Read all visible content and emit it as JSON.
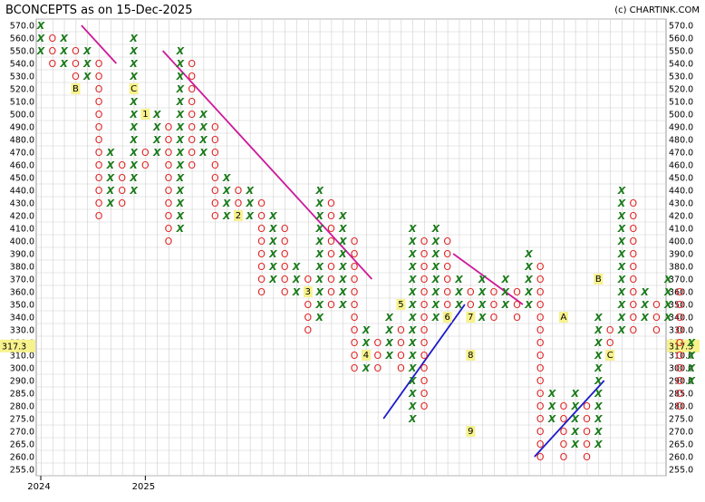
{
  "header": {
    "title": "BCONCEPTS as on 15-Dec-2025",
    "credit": "(c) CHARTINK.COM"
  },
  "chart_data": {
    "type": "point-and-figure",
    "box_levels": [
      570,
      560,
      550,
      540,
      530,
      520,
      510,
      500,
      490,
      480,
      470,
      460,
      450,
      440,
      430,
      420,
      410,
      400,
      390,
      380,
      370,
      360,
      350,
      340,
      330,
      320,
      310,
      300,
      290,
      285,
      280,
      275,
      270,
      265,
      260,
      255
    ],
    "tick_labels": [
      "570.0",
      "560.0",
      "550.0",
      "540.0",
      "530.0",
      "520.0",
      "510.0",
      "500.0",
      "490.0",
      "480.0",
      "470.0",
      "460.0",
      "450.0",
      "440.0",
      "430.0",
      "420.0",
      "410.0",
      "400.0",
      "390.0",
      "380.0",
      "370.0",
      "360.0",
      "350.0",
      "340.0",
      "330.0",
      "320.0",
      "310.0",
      "300.0",
      "290.0",
      "285.0",
      "280.0",
      "275.0",
      "270.0",
      "265.0",
      "260.0",
      "255.0"
    ],
    "last_price": "317.3",
    "x_labels": [
      {
        "label": "2024",
        "col": 0
      },
      {
        "label": "2025",
        "col": 9
      }
    ],
    "columns": [
      {
        "t": "X",
        "top": 570,
        "bot": 550
      },
      {
        "t": "O",
        "top": 560,
        "bot": 540
      },
      {
        "t": "X",
        "top": 560,
        "bot": 540
      },
      {
        "t": "O",
        "top": 550,
        "bot": 520
      },
      {
        "t": "X",
        "top": 550,
        "bot": 530
      },
      {
        "t": "O",
        "top": 540,
        "bot": 420
      },
      {
        "t": "X",
        "top": 470,
        "bot": 430
      },
      {
        "t": "O",
        "top": 460,
        "bot": 430
      },
      {
        "t": "X",
        "top": 560,
        "bot": 440
      },
      {
        "t": "O",
        "top": 470,
        "bot": 460
      },
      {
        "t": "X",
        "top": 500,
        "bot": 470
      },
      {
        "t": "O",
        "top": 490,
        "bot": 400
      },
      {
        "t": "X",
        "top": 550,
        "bot": 410
      },
      {
        "t": "O",
        "top": 540,
        "bot": 460
      },
      {
        "t": "X",
        "top": 500,
        "bot": 470
      },
      {
        "t": "O",
        "top": 490,
        "bot": 420
      },
      {
        "t": "X",
        "top": 450,
        "bot": 420
      },
      {
        "t": "O",
        "top": 440,
        "bot": 420
      },
      {
        "t": "X",
        "top": 440,
        "bot": 420
      },
      {
        "t": "O",
        "top": 430,
        "bot": 360
      },
      {
        "t": "X",
        "top": 420,
        "bot": 370
      },
      {
        "t": "O",
        "top": 410,
        "bot": 360
      },
      {
        "t": "X",
        "top": 380,
        "bot": 360
      },
      {
        "t": "O",
        "top": 370,
        "bot": 330
      },
      {
        "t": "X",
        "top": 440,
        "bot": 340
      },
      {
        "t": "O",
        "top": 430,
        "bot": 350
      },
      {
        "t": "X",
        "top": 420,
        "bot": 350
      },
      {
        "t": "O",
        "top": 400,
        "bot": 300
      },
      {
        "t": "X",
        "top": 330,
        "bot": 300
      },
      {
        "t": "O",
        "top": 320,
        "bot": 300
      },
      {
        "t": "X",
        "top": 340,
        "bot": 310
      },
      {
        "t": "O",
        "top": 330,
        "bot": 300
      },
      {
        "t": "X",
        "top": 410,
        "bot": 275
      },
      {
        "t": "O",
        "top": 400,
        "bot": 280
      },
      {
        "t": "X",
        "top": 410,
        "bot": 340
      },
      {
        "t": "O",
        "top": 400,
        "bot": 350
      },
      {
        "t": "X",
        "top": 370,
        "bot": 350
      },
      {
        "t": "O",
        "top": 360,
        "bot": 350
      },
      {
        "t": "X",
        "top": 370,
        "bot": 340
      },
      {
        "t": "O",
        "top": 360,
        "bot": 340
      },
      {
        "t": "X",
        "top": 370,
        "bot": 350
      },
      {
        "t": "O",
        "top": 360,
        "bot": 340
      },
      {
        "t": "X",
        "top": 390,
        "bot": 350
      },
      {
        "t": "O",
        "top": 380,
        "bot": 260
      },
      {
        "t": "X",
        "top": 285,
        "bot": 275
      },
      {
        "t": "O",
        "top": 280,
        "bot": 260
      },
      {
        "t": "X",
        "top": 285,
        "bot": 265
      },
      {
        "t": "O",
        "top": 280,
        "bot": 260
      },
      {
        "t": "X",
        "top": 340,
        "bot": 265
      },
      {
        "t": "O",
        "top": 330,
        "bot": 320
      },
      {
        "t": "X",
        "top": 440,
        "bot": 330
      },
      {
        "t": "O",
        "top": 430,
        "bot": 330
      },
      {
        "t": "X",
        "top": 360,
        "bot": 340
      },
      {
        "t": "O",
        "top": 350,
        "bot": 330
      },
      {
        "t": "X",
        "top": 370,
        "bot": 340
      },
      {
        "t": "O",
        "top": 360,
        "bot": 280
      },
      {
        "t": "X",
        "top": 320,
        "bot": 290
      }
    ],
    "month_markers": [
      {
        "label": "B",
        "col": 3,
        "price": 520
      },
      {
        "label": "C",
        "col": 8,
        "price": 520
      },
      {
        "label": "1",
        "col": 9,
        "price": 500
      },
      {
        "label": "2",
        "col": 17,
        "price": 420
      },
      {
        "label": "3",
        "col": 23,
        "price": 360
      },
      {
        "label": "4",
        "col": 28,
        "price": 310
      },
      {
        "label": "5",
        "col": 31,
        "price": 350
      },
      {
        "label": "6",
        "col": 35,
        "price": 340
      },
      {
        "label": "7",
        "col": 37,
        "price": 340
      },
      {
        "label": "8",
        "col": 37,
        "price": 310
      },
      {
        "label": "9",
        "col": 37,
        "price": 270
      },
      {
        "label": "A",
        "col": 45,
        "price": 340
      },
      {
        "label": "B",
        "col": 48,
        "price": 370
      },
      {
        "label": "C",
        "col": 49,
        "price": 310
      }
    ],
    "trendlines": [
      {
        "kind": "bearish-resistance",
        "color": "#cc1a9a",
        "from": {
          "col": 3.5,
          "price": 570
        },
        "to": {
          "col": 6.5,
          "price": 540
        }
      },
      {
        "kind": "bearish-resistance",
        "color": "#cc1a9a",
        "from": {
          "col": 10.5,
          "price": 550
        },
        "to": {
          "col": 28.5,
          "price": 370
        }
      },
      {
        "kind": "bearish-resistance",
        "color": "#cc1a9a",
        "from": {
          "col": 35.5,
          "price": 390
        },
        "to": {
          "col": 41.5,
          "price": 350
        }
      },
      {
        "kind": "bullish-support",
        "color": "#1a1acc",
        "from": {
          "col": 29.5,
          "price": 275
        },
        "to": {
          "col": 36.5,
          "price": 350
        }
      },
      {
        "kind": "bullish-support",
        "color": "#1a1acc",
        "from": {
          "col": 42.5,
          "price": 260
        },
        "to": {
          "col": 48.5,
          "price": 290
        }
      }
    ],
    "colors": {
      "x": "#1a7a1a",
      "o": "#e02020",
      "grid": "#cfcfcf",
      "highlight": "#f7f28c"
    }
  }
}
